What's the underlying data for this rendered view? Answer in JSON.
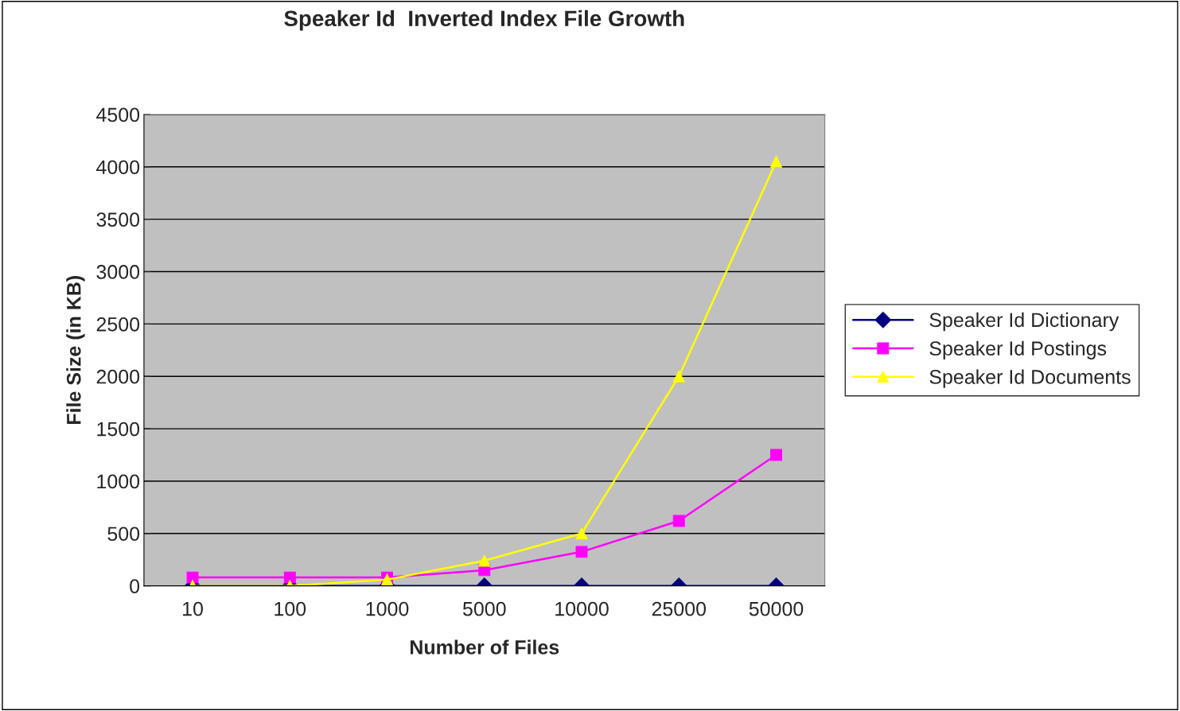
{
  "chart_data": {
    "type": "line",
    "title": "Speaker Id  Inverted Index File Growth",
    "xlabel": "Number of Files",
    "ylabel": "File Size (in KB)",
    "categories": [
      "10",
      "100",
      "1000",
      "5000",
      "10000",
      "25000",
      "50000"
    ],
    "series": [
      {
        "name": "Speaker Id Dictionary",
        "color": "#000080",
        "marker": "diamond",
        "values": [
          0,
          0,
          0,
          0,
          0,
          0,
          0
        ]
      },
      {
        "name": "Speaker Id Postings",
        "color": "#ff00ff",
        "marker": "square",
        "values": [
          80,
          80,
          80,
          150,
          325,
          620,
          1250
        ]
      },
      {
        "name": "Speaker Id Documents",
        "color": "#ffff00",
        "marker": "triangle",
        "values": [
          0,
          0,
          60,
          240,
          500,
          2000,
          4050
        ]
      }
    ],
    "ylim": [
      0,
      4500
    ],
    "yticks": [
      0,
      500,
      1000,
      1500,
      2000,
      2500,
      3000,
      3500,
      4000,
      4500
    ],
    "grid": "y",
    "legend": "right"
  }
}
